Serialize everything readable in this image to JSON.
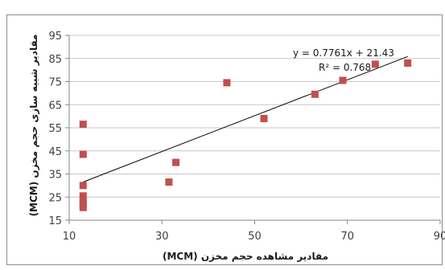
{
  "chart_data": {
    "type": "scatter",
    "title": "",
    "xlabel": "مقادیر مشاهده حجم مخزن (MCM)",
    "ylabel": "مقادیر شبیه سازی حجم مخزن (MCM)",
    "xlim": [
      10,
      90
    ],
    "ylim": [
      15,
      95
    ],
    "x_ticks": [
      10,
      30,
      50,
      70,
      90
    ],
    "y_ticks": [
      15,
      25,
      35,
      45,
      55,
      65,
      75,
      85,
      95
    ],
    "grid": "horizontal",
    "legend": "none",
    "marker_color": "#c0504d",
    "trendline_color": "#000000",
    "points": [
      {
        "x": 13,
        "y": 56.5
      },
      {
        "x": 13,
        "y": 43.5
      },
      {
        "x": 13,
        "y": 30
      },
      {
        "x": 13,
        "y": 25.5
      },
      {
        "x": 13,
        "y": 23.5
      },
      {
        "x": 13,
        "y": 22
      },
      {
        "x": 13,
        "y": 20.5
      },
      {
        "x": 31.5,
        "y": 31.5
      },
      {
        "x": 33,
        "y": 40
      },
      {
        "x": 44,
        "y": 74.5
      },
      {
        "x": 52,
        "y": 59
      },
      {
        "x": 63,
        "y": 69.5
      },
      {
        "x": 69,
        "y": 75.5
      },
      {
        "x": 76,
        "y": 82.5
      },
      {
        "x": 83,
        "y": 83
      }
    ],
    "trendline": {
      "slope": 0.7761,
      "intercept": 21.43,
      "x_range": [
        13,
        83
      ],
      "equation_label": "y = 0.7761x + 21.43",
      "r2_label": "R² = 0.768"
    }
  }
}
